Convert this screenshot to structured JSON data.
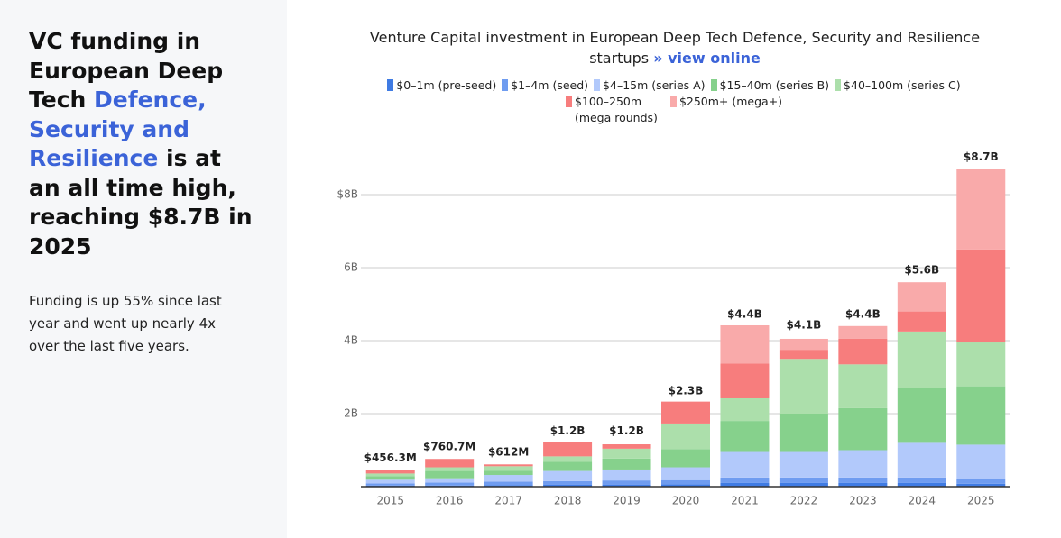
{
  "headline": {
    "before": "VC funding in European Deep Tech ",
    "highlight": "Defence, Security and Resilience",
    "after": " is at an all time high, reaching $8.7B in 2025"
  },
  "summary": "Funding is up 55% since last year and went up nearly 4x over the last five years.",
  "chart_data": {
    "type": "stacked_bar",
    "title": "Venture Capital investment in European Deep Tech Defence, Security and Resilience startups",
    "link": "» view online",
    "categories": [
      "2015",
      "2016",
      "2017",
      "2018",
      "2019",
      "2020",
      "2021",
      "2022",
      "2023",
      "2024",
      "2025"
    ],
    "series": [
      {
        "name": "$0–1m (pre-seed)",
        "color": "#3f7be3",
        "values": [
          0.03,
          0.03,
          0.04,
          0.05,
          0.05,
          0.06,
          0.1,
          0.1,
          0.1,
          0.1,
          0.08
        ]
      },
      {
        "name": "$1–4m (seed)",
        "color": "#6f9cf0",
        "values": [
          0.06,
          0.08,
          0.1,
          0.1,
          0.12,
          0.12,
          0.15,
          0.15,
          0.15,
          0.15,
          0.12
        ]
      },
      {
        "name": "$4–15m (series A)",
        "color": "#b2c9fb",
        "values": [
          0.1,
          0.12,
          0.18,
          0.28,
          0.3,
          0.35,
          0.7,
          0.7,
          0.75,
          0.95,
          0.95
        ]
      },
      {
        "name": "$15–40m (series B)",
        "color": "#86d18c",
        "values": [
          0.1,
          0.2,
          0.12,
          0.25,
          0.3,
          0.5,
          0.85,
          1.05,
          1.15,
          1.5,
          1.6
        ]
      },
      {
        "name": "$40–100m (series C)",
        "color": "#acdfab",
        "values": [
          0.07,
          0.1,
          0.12,
          0.15,
          0.27,
          0.7,
          0.62,
          1.5,
          1.2,
          1.55,
          1.2
        ]
      },
      {
        "name": "$100–250m (mega rounds)",
        "color": "#f77d7d",
        "values": [
          0.096,
          0.23,
          0.05,
          0.4,
          0.12,
          0.6,
          0.95,
          0.25,
          0.7,
          0.55,
          2.55
        ]
      },
      {
        "name": "$250m+ (mega+)",
        "color": "#f9aaaa",
        "values": [
          0,
          0,
          0,
          0,
          0,
          0,
          1.05,
          0.3,
          0.35,
          0.8,
          2.2
        ]
      }
    ],
    "totals": {
      "values": [
        0.4563,
        0.7607,
        0.612,
        1.2,
        1.2,
        2.3,
        4.4,
        4.1,
        4.4,
        5.6,
        8.7
      ],
      "value_labels": [
        "$456.3M",
        "$760.7M",
        "$612M",
        "$1.2B",
        "$1.2B",
        "$2.3B",
        "$4.4B",
        "$4.1B",
        "$4.4B",
        "$5.6B",
        "$8.7B"
      ]
    },
    "ylim": [
      0,
      9
    ],
    "yticks": [
      {
        "value": 2,
        "label": "2B"
      },
      {
        "value": 4,
        "label": "4B"
      },
      {
        "value": 6,
        "label": "6B"
      },
      {
        "value": 8,
        "label": "$8B"
      }
    ],
    "grid": true
  }
}
